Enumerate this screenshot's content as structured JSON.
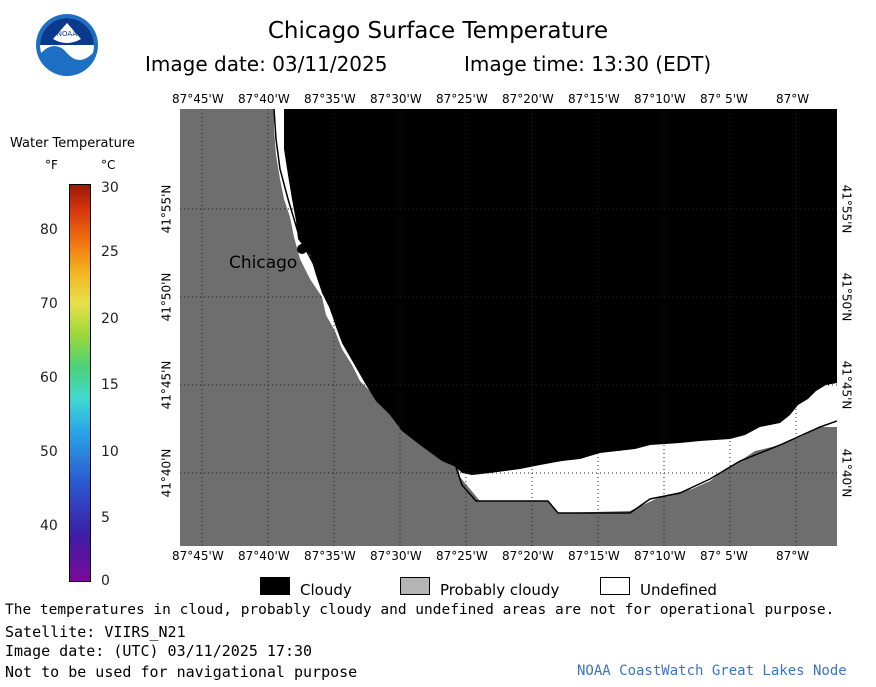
{
  "header": {
    "title": "Chicago Surface Temperature",
    "image_date": "Image date: 03/11/2025",
    "image_time": "Image time: 13:30 (EDT)"
  },
  "scale": {
    "title": "Water Temperature",
    "unit_f": "°F",
    "unit_c": "°C",
    "f_ticks": [
      "80",
      "70",
      "60",
      "50",
      "40"
    ],
    "c_ticks": [
      "30",
      "25",
      "20",
      "15",
      "10",
      "5",
      "0"
    ]
  },
  "map": {
    "lon_labels": [
      "87°45'W",
      "87°40'W",
      "87°35'W",
      "87°30'W",
      "87°25'W",
      "87°20'W",
      "87°15'W",
      "87°10'W",
      "87° 5'W",
      "87°W"
    ],
    "lat_labels": [
      "41°55'N",
      "41°50'N",
      "41°45'N",
      "41°40'N"
    ],
    "city_label": "Chicago",
    "colors": {
      "land": "#6e6e6e",
      "cloudy": "#000000",
      "undefined": "#ffffff"
    }
  },
  "legend": {
    "cloudy": "Cloudy",
    "probably_cloudy": "Probably cloudy",
    "undefined": "Undefined"
  },
  "footer": {
    "disclaimer": "The temperatures in cloud, probably cloudy and undefined areas are not for operational purpose.",
    "satellite": "Satellite: VIIRS_N21",
    "utc_date": "Image date: (UTC) 03/11/2025  17:30",
    "nav_warning": "Not to be used for navigational purpose",
    "credit": "NOAA CoastWatch Great Lakes Node"
  },
  "logo": {
    "text": "NOAA"
  }
}
